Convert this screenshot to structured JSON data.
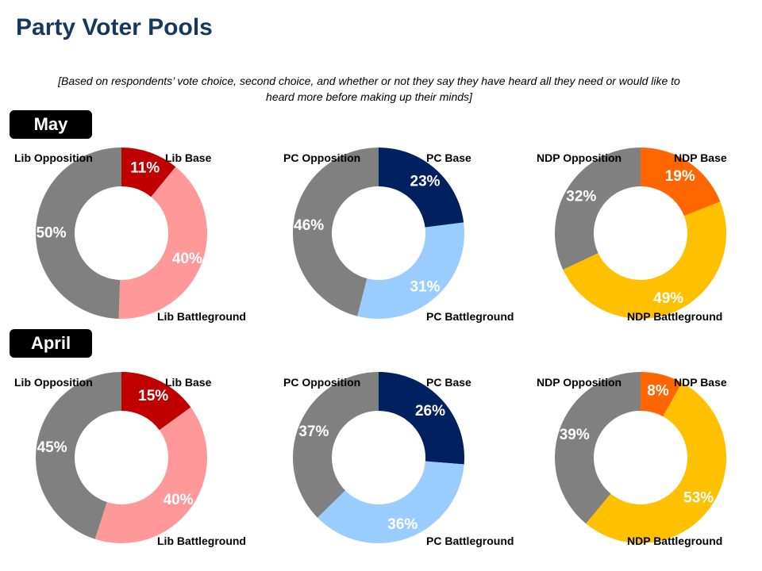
{
  "title": "Party Voter Pools",
  "subtitle_line1": "[Based on respondents’ vote choice, second choice, and whether or not they say they have heard all they need or would like to",
  "subtitle_line2": "heard more before making up their minds]",
  "colors": {
    "lib_base": "#c00000",
    "lib_battleground": "#ff9999",
    "pc_base": "#002060",
    "pc_battleground": "#99ccff",
    "ndp_base": "#ff6600",
    "ndp_battleground": "#ffc000",
    "opposition": "#808080"
  },
  "periods": [
    "May",
    "April"
  ],
  "chart_data": [
    {
      "type": "pie",
      "period": "May",
      "party": "Lib",
      "slices": [
        {
          "label": "Lib Base",
          "value": 11
        },
        {
          "label": "Lib Battleground",
          "value": 40
        },
        {
          "label": "Lib Opposition",
          "value": 50
        }
      ],
      "value_labels": [
        "11%",
        "40%",
        "50%"
      ]
    },
    {
      "type": "pie",
      "period": "May",
      "party": "PC",
      "slices": [
        {
          "label": "PC Base",
          "value": 23
        },
        {
          "label": "PC Battleground",
          "value": 31
        },
        {
          "label": "PC Opposition",
          "value": 46
        }
      ],
      "value_labels": [
        "23%",
        "31%",
        "46%"
      ]
    },
    {
      "type": "pie",
      "period": "May",
      "party": "NDP",
      "slices": [
        {
          "label": "NDP Base",
          "value": 19
        },
        {
          "label": "NDP Battleground",
          "value": 49
        },
        {
          "label": "NDP Opposition",
          "value": 32
        }
      ],
      "value_labels": [
        "19%",
        "49%",
        "32%"
      ]
    },
    {
      "type": "pie",
      "period": "April",
      "party": "Lib",
      "slices": [
        {
          "label": "Lib Base",
          "value": 15
        },
        {
          "label": "Lib Battleground",
          "value": 40
        },
        {
          "label": "Lib Opposition",
          "value": 45
        }
      ],
      "value_labels": [
        "15%",
        "40%",
        "45%"
      ]
    },
    {
      "type": "pie",
      "period": "April",
      "party": "PC",
      "slices": [
        {
          "label": "PC Base",
          "value": 26
        },
        {
          "label": "PC Battleground",
          "value": 36
        },
        {
          "label": "PC Opposition",
          "value": 37
        }
      ],
      "value_labels": [
        "26%",
        "36%",
        "37%"
      ]
    },
    {
      "type": "pie",
      "period": "April",
      "party": "NDP",
      "slices": [
        {
          "label": "NDP Base",
          "value": 8
        },
        {
          "label": "NDP Battleground",
          "value": 53
        },
        {
          "label": "NDP Opposition",
          "value": 39
        }
      ],
      "value_labels": [
        "8%",
        "53%",
        "39%"
      ]
    }
  ]
}
